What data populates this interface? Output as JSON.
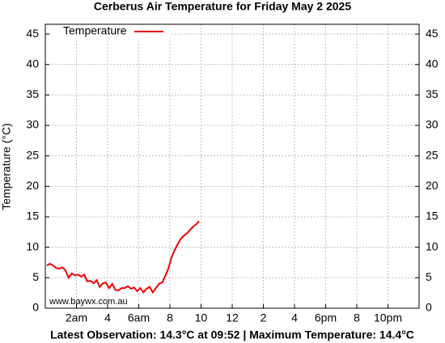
{
  "chart_data": {
    "type": "line",
    "title": "Cerberus Air Temperature  for Friday May 2 2025",
    "ylabel": "Temperature (°C)",
    "footer": "Latest Observation: 14.3°C at 09:52 | Maximum Temperature: 14.4°C",
    "watermark": "www.baywx.com.au",
    "xlim": [
      0,
      24
    ],
    "xticks": [
      {
        "value": 2,
        "label": "2am"
      },
      4,
      {
        "value": 6,
        "label": "6am"
      },
      8,
      10,
      12,
      {
        "value": 14,
        "label": "2"
      },
      {
        "value": 16,
        "label": "4"
      },
      {
        "value": 18,
        "label": "6pm"
      },
      {
        "value": 20,
        "label": "8"
      },
      {
        "value": 22,
        "label": "10pm"
      }
    ],
    "ylim": [
      0,
      46.6
    ],
    "yticks": [
      0,
      5,
      10,
      15,
      20,
      25,
      30,
      35,
      40,
      45
    ],
    "grid": true,
    "legend": "top-left",
    "x": [
      0.1,
      0.3,
      0.5,
      0.7,
      0.9,
      1.1,
      1.3,
      1.5,
      1.7,
      1.9,
      2.1,
      2.3,
      2.5,
      2.7,
      2.9,
      3.1,
      3.3,
      3.5,
      3.7,
      3.9,
      4.1,
      4.3,
      4.5,
      4.7,
      4.9,
      5.1,
      5.3,
      5.5,
      5.7,
      5.9,
      6.1,
      6.3,
      6.5,
      6.7,
      6.9,
      7.1,
      7.3,
      7.5,
      7.7,
      7.9,
      8.1,
      8.3,
      8.5,
      8.7,
      8.9,
      9.1,
      9.3,
      9.5,
      9.7,
      9.87
    ],
    "series": [
      {
        "name": "Temperature",
        "color": "#ee0000",
        "values": [
          7.0,
          7.3,
          7.0,
          6.6,
          6.5,
          6.7,
          6.2,
          5.0,
          5.7,
          5.4,
          5.5,
          5.2,
          5.5,
          4.4,
          4.5,
          4.1,
          4.6,
          3.5,
          4.1,
          4.2,
          3.3,
          4.0,
          3.0,
          2.9,
          3.3,
          3.3,
          3.6,
          3.2,
          3.4,
          2.8,
          3.3,
          2.6,
          3.2,
          3.5,
          2.6,
          3.3,
          4.0,
          4.2,
          5.3,
          6.5,
          8.3,
          9.5,
          10.5,
          11.4,
          11.9,
          12.3,
          12.9,
          13.4,
          13.8,
          14.3
        ]
      }
    ]
  }
}
